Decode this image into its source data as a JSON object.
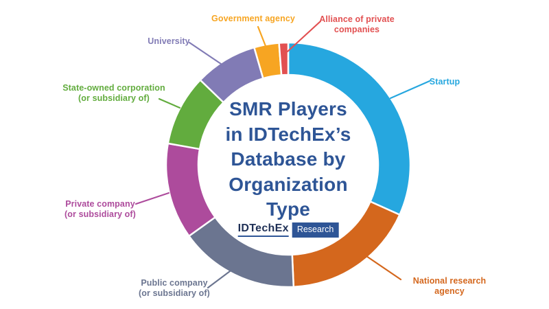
{
  "title": "SMR Players\nin IDTechEx’s\nDatabase by\nOrganization\nType",
  "logo": {
    "brand": "IDTechEx",
    "suffix": "Research"
  },
  "colors": {
    "background": "#FFFFFF",
    "title": "#2E5596",
    "logo_brand": "#1F3056",
    "logo_badge_bg": "#2E5596",
    "logo_badge_text": "#FFFFFF",
    "slice_gap_stroke": "#FFFFFF"
  },
  "chart_data": {
    "type": "pie",
    "subtype": "donut",
    "title": "SMR Players in IDTechEx’s Database by Organization Type",
    "legend_position": "outside-callouts",
    "value_unit": "% share (estimated from arc angles)",
    "segments": [
      {
        "label": "Startup",
        "value": 31.7,
        "color": "#26A7DF"
      },
      {
        "label": "National research agency",
        "value": 17.6,
        "color": "#D4671D"
      },
      {
        "label": "Public company\n(or subsidiary of)",
        "value": 15.8,
        "color": "#6B7590"
      },
      {
        "label": "Private company\n(or subsidiary of)",
        "value": 12.7,
        "color": "#AD4B9C"
      },
      {
        "label": "State-owned corporation\n(or subsidiary of)",
        "value": 9.4,
        "color": "#62AC3E"
      },
      {
        "label": "University",
        "value": 8.3,
        "color": "#817BB5"
      },
      {
        "label": "Government agency",
        "value": 3.3,
        "color": "#F7A522"
      },
      {
        "label": "Alliance of private\ncompanies",
        "value": 1.2,
        "color": "#E25051"
      }
    ]
  }
}
